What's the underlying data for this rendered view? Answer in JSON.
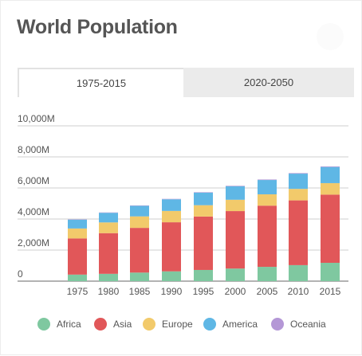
{
  "title": "World Population",
  "tabs": [
    {
      "label": "1975-2015",
      "active": true
    },
    {
      "label": "2020-2050",
      "active": false
    }
  ],
  "chart_data": {
    "type": "bar",
    "stacked": true,
    "categories": [
      "1975",
      "1980",
      "1985",
      "1990",
      "1995",
      "2000",
      "2005",
      "2010",
      "2015"
    ],
    "series": [
      {
        "name": "Africa",
        "color": "#7fc8a0",
        "values": [
          420,
          470,
          550,
          630,
          720,
          810,
          920,
          1030,
          1180
        ]
      },
      {
        "name": "Asia",
        "color": "#e15759",
        "values": [
          2330,
          2620,
          2880,
          3160,
          3440,
          3700,
          3940,
          4170,
          4390
        ]
      },
      {
        "name": "Europe",
        "color": "#f2ca6b",
        "values": [
          640,
          690,
          740,
          730,
          730,
          730,
          730,
          740,
          740
        ]
      },
      {
        "name": "America",
        "color": "#5fb7e5",
        "values": [
          570,
          620,
          680,
          750,
          810,
          870,
          920,
          980,
          1040
        ]
      },
      {
        "name": "Oceania",
        "color": "#b497d6",
        "values": [
          21,
          23,
          25,
          27,
          29,
          31,
          34,
          36,
          39
        ]
      }
    ],
    "yticks": [
      "0",
      "2,000M",
      "4,000M",
      "6,000M",
      "8,000M",
      "10,000M"
    ],
    "ylim": [
      0,
      10000
    ],
    "grid": true,
    "legend_position": "bottom"
  }
}
